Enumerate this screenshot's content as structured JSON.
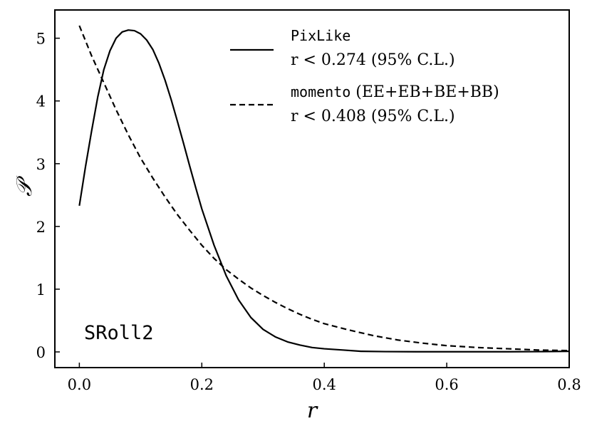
{
  "chart_data": {
    "type": "line",
    "xlabel": "r",
    "ylabel": "𝒫",
    "xlim": [
      -0.04,
      0.8
    ],
    "ylim": [
      -0.25,
      5.45
    ],
    "x_ticks": [
      "0.0",
      "0.2",
      "0.4",
      "0.6",
      "0.8"
    ],
    "y_ticks": [
      "0",
      "1",
      "2",
      "3",
      "4",
      "5"
    ],
    "annotation": "SRoll2",
    "legend_position": "top-right",
    "series": [
      {
        "name": "PixLike",
        "legend_code": "PixLike",
        "legend_text": "",
        "legend_limit": "r < 0.274 (95% C.L.)",
        "linestyle": "solid",
        "color": "#000000",
        "x": [
          0.0,
          0.01,
          0.02,
          0.03,
          0.04,
          0.05,
          0.06,
          0.07,
          0.08,
          0.09,
          0.1,
          0.11,
          0.12,
          0.13,
          0.14,
          0.15,
          0.16,
          0.17,
          0.18,
          0.19,
          0.2,
          0.22,
          0.24,
          0.26,
          0.28,
          0.3,
          0.32,
          0.34,
          0.36,
          0.38,
          0.4,
          0.43,
          0.46,
          0.5,
          0.55,
          0.6,
          0.65,
          0.7,
          0.75,
          0.8
        ],
        "y": [
          2.33,
          2.95,
          3.52,
          4.06,
          4.5,
          4.8,
          5.0,
          5.1,
          5.13,
          5.12,
          5.07,
          4.97,
          4.82,
          4.6,
          4.33,
          4.02,
          3.68,
          3.33,
          2.97,
          2.62,
          2.28,
          1.7,
          1.21,
          0.83,
          0.55,
          0.36,
          0.24,
          0.16,
          0.11,
          0.07,
          0.05,
          0.03,
          0.01,
          0.005,
          0.003,
          0.003,
          0.003,
          0.003,
          0.005,
          0.01
        ]
      },
      {
        "name": "momento (EE+EB+BE+BB)",
        "legend_code": "momento",
        "legend_text": " (EE+EB+BE+BB)",
        "legend_limit": "r < 0.408 (95% C.L.)",
        "linestyle": "dashed",
        "color": "#000000",
        "x": [
          0.0,
          0.02,
          0.04,
          0.06,
          0.08,
          0.1,
          0.12,
          0.14,
          0.16,
          0.18,
          0.2,
          0.22,
          0.24,
          0.26,
          0.28,
          0.3,
          0.32,
          0.34,
          0.36,
          0.38,
          0.4,
          0.44,
          0.48,
          0.52,
          0.56,
          0.6,
          0.65,
          0.7,
          0.75,
          0.8
        ],
        "y": [
          5.2,
          4.72,
          4.29,
          3.86,
          3.46,
          3.09,
          2.77,
          2.47,
          2.19,
          1.94,
          1.7,
          1.49,
          1.31,
          1.16,
          1.02,
          0.9,
          0.79,
          0.69,
          0.6,
          0.52,
          0.45,
          0.35,
          0.26,
          0.19,
          0.14,
          0.1,
          0.07,
          0.05,
          0.03,
          0.02
        ]
      }
    ]
  }
}
